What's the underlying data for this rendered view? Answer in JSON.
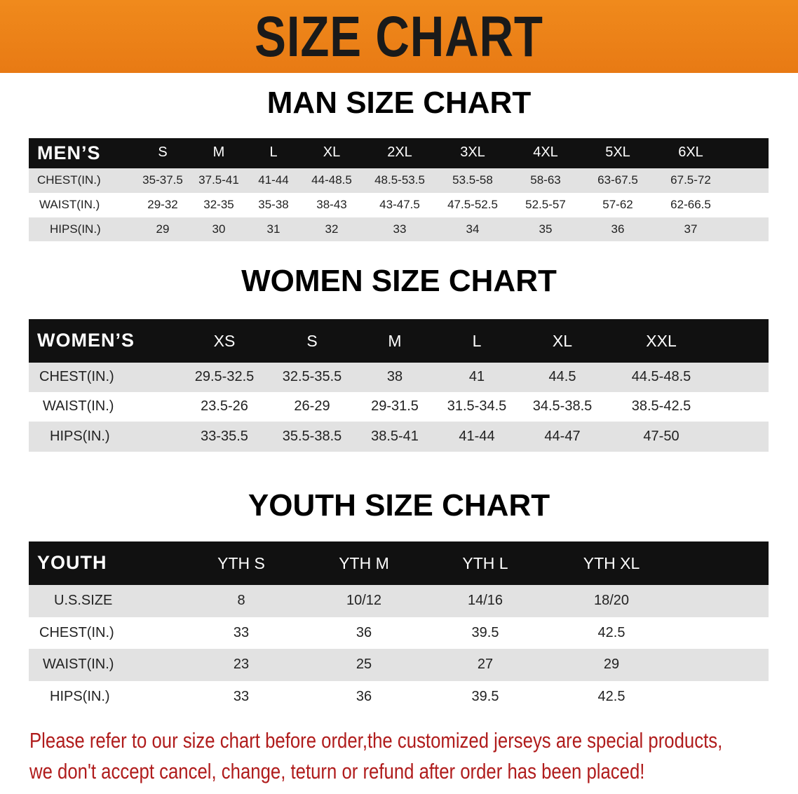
{
  "banner_title": "SIZE CHART",
  "accent_color": "#e87a14",
  "note_color": "#b01c1c",
  "tables": [
    {
      "title": "MAN SIZE CHART",
      "header_label": "MEN’S",
      "sizes": [
        "S",
        "M",
        "L",
        "XL",
        "2XL",
        "3XL",
        "4XL",
        "5XL",
        "6XL"
      ],
      "rows": [
        {
          "label": "CHEST(IN.)",
          "values": [
            "35-37.5",
            "37.5-41",
            "41-44",
            "44-48.5",
            "48.5-53.5",
            "53.5-58",
            "58-63",
            "63-67.5",
            "67.5-72"
          ]
        },
        {
          "label": "WAIST(IN.)",
          "values": [
            "29-32",
            "32-35",
            "35-38",
            "38-43",
            "43-47.5",
            "47.5-52.5",
            "52.5-57",
            "57-62",
            "62-66.5"
          ]
        },
        {
          "label": "HIPS(IN.)",
          "values": [
            "29",
            "30",
            "31",
            "32",
            "33",
            "34",
            "35",
            "36",
            "37"
          ]
        }
      ]
    },
    {
      "title": "WOMEN SIZE CHART",
      "header_label": "WOMEN’S",
      "sizes": [
        "XS",
        "S",
        "M",
        "L",
        "XL",
        "XXL"
      ],
      "rows": [
        {
          "label": "CHEST(IN.)",
          "values": [
            "29.5-32.5",
            "32.5-35.5",
            "38",
            "41",
            "44.5",
            "44.5-48.5"
          ]
        },
        {
          "label": "WAIST(IN.)",
          "values": [
            "23.5-26",
            "26-29",
            "29-31.5",
            "31.5-34.5",
            "34.5-38.5",
            "38.5-42.5"
          ]
        },
        {
          "label": "HIPS(IN.)",
          "values": [
            "33-35.5",
            "35.5-38.5",
            "38.5-41",
            "41-44",
            "44-47",
            "47-50"
          ]
        }
      ]
    },
    {
      "title": "YOUTH SIZE CHART",
      "header_label": "YOUTH",
      "sizes": [
        "YTH S",
        "YTH M",
        "YTH L",
        "YTH XL"
      ],
      "rows": [
        {
          "label": "U.S.SIZE",
          "values": [
            "8",
            "10/12",
            "14/16",
            "18/20"
          ]
        },
        {
          "label": "CHEST(IN.)",
          "values": [
            "33",
            "36",
            "39.5",
            "42.5"
          ]
        },
        {
          "label": "WAIST(IN.)",
          "values": [
            "23",
            "25",
            "27",
            "29"
          ]
        },
        {
          "label": "HIPS(IN.)",
          "values": [
            "33",
            "36",
            "39.5",
            "42.5"
          ]
        }
      ]
    }
  ],
  "note_lines": [
    "Please refer to our size chart before order,the customized jerseys are special products,",
    "we don't accept cancel, change, teturn or refund after order has been placed!"
  ]
}
